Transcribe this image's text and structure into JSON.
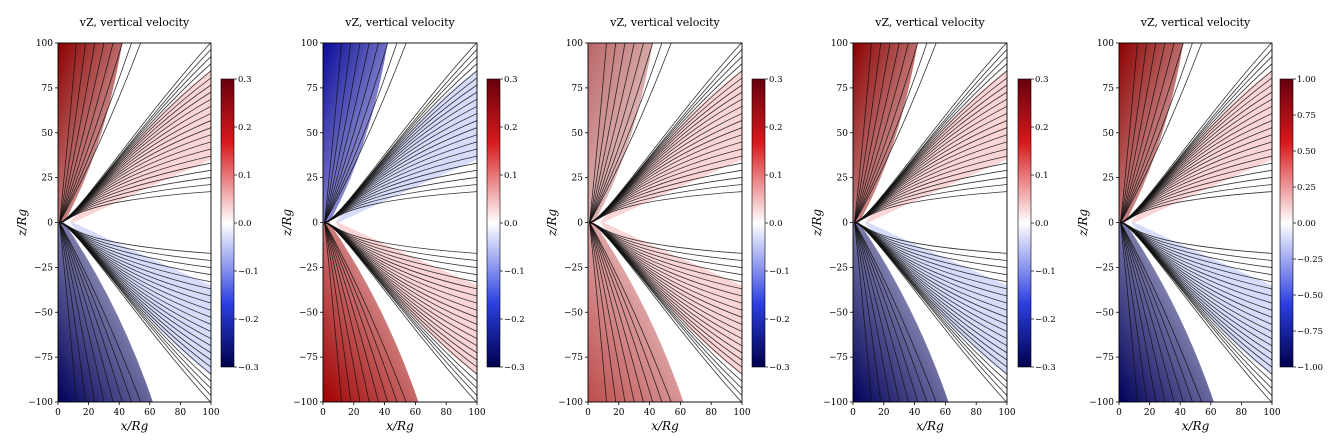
{
  "chart_data": [
    {
      "type": "heatmap",
      "title": "vZ, vertical velocity",
      "xlabel": "x/Rg",
      "ylabel": "z/Rg",
      "xlim": [
        0,
        100
      ],
      "ylim": [
        -100,
        100
      ],
      "xticks": [
        "0",
        "20",
        "40",
        "60",
        "80",
        "100"
      ],
      "yticks": [
        "100",
        "75",
        "50",
        "25",
        "0",
        "−25",
        "−50",
        "−75",
        "−100"
      ],
      "colorbar": {
        "min": -0.3,
        "max": 0.3,
        "ticks": [
          "0.3",
          "0.2",
          "0.1",
          "0.0",
          "−0.1",
          "−0.2",
          "−0.3"
        ],
        "colormap": "seismic"
      },
      "upper_sign": 1,
      "lower_sign": -1
    },
    {
      "type": "heatmap",
      "title": "vZ, vertical velocity",
      "xlabel": "x/Rg",
      "ylabel": "z/Rg",
      "xlim": [
        0,
        100
      ],
      "ylim": [
        -100,
        100
      ],
      "xticks": [
        "0",
        "20",
        "40",
        "60",
        "80",
        "100"
      ],
      "yticks": [
        "100",
        "75",
        "50",
        "25",
        "0",
        "−25",
        "−50",
        "−75",
        "−100"
      ],
      "colorbar": {
        "min": -0.3,
        "max": 0.3,
        "ticks": [
          "0.3",
          "0.2",
          "0.1",
          "0.0",
          "−0.1",
          "−0.2",
          "−0.3"
        ],
        "colormap": "seismic"
      },
      "upper_sign": -1,
      "lower_sign": 1
    },
    {
      "type": "heatmap",
      "title": "vZ, vertical velocity",
      "xlabel": "x/Rg",
      "ylabel": "z/Rg",
      "xlim": [
        0,
        100
      ],
      "ylim": [
        -100,
        100
      ],
      "xticks": [
        "0",
        "20",
        "40",
        "60",
        "80",
        "100"
      ],
      "yticks": [
        "100",
        "75",
        "50",
        "25",
        "0",
        "−25",
        "−50",
        "−75",
        "−100"
      ],
      "colorbar": {
        "min": -0.3,
        "max": 0.3,
        "ticks": [
          "0.3",
          "0.2",
          "0.1",
          "0.0",
          "−0.1",
          "−0.2",
          "−0.3"
        ],
        "colormap": "seismic"
      },
      "upper_sign": 0.6,
      "lower_sign": 0.7
    },
    {
      "type": "heatmap",
      "title": "vZ, vertical velocity",
      "xlabel": "x/Rg",
      "ylabel": "z/Rg",
      "xlim": [
        0,
        100
      ],
      "ylim": [
        -100,
        100
      ],
      "xticks": [
        "0",
        "20",
        "40",
        "60",
        "80",
        "100"
      ],
      "yticks": [
        "100",
        "75",
        "50",
        "25",
        "0",
        "−25",
        "−50",
        "−75",
        "−100"
      ],
      "colorbar": {
        "min": -0.3,
        "max": 0.3,
        "ticks": [
          "0.3",
          "0.2",
          "0.1",
          "0.0",
          "−0.1",
          "−0.2",
          "−0.3"
        ],
        "colormap": "seismic"
      },
      "upper_sign": 1,
      "lower_sign": -1
    },
    {
      "type": "heatmap",
      "title": "vZ, vertical velocity",
      "xlabel": "x/Rg",
      "ylabel": "z/Rg",
      "xlim": [
        0,
        100
      ],
      "ylim": [
        -100,
        100
      ],
      "xticks": [
        "0",
        "20",
        "40",
        "60",
        "80",
        "100"
      ],
      "yticks": [
        "100",
        "75",
        "50",
        "25",
        "0",
        "−25",
        "−50",
        "−75",
        "−100"
      ],
      "colorbar": {
        "min": -1.0,
        "max": 1.0,
        "ticks": [
          "1.00",
          "0.75",
          "0.50",
          "0.25",
          "0.00",
          "−0.25",
          "−0.50",
          "−0.75",
          "−1.00"
        ],
        "colormap": "seismic"
      },
      "upper_sign": 1,
      "lower_sign": -1
    }
  ]
}
